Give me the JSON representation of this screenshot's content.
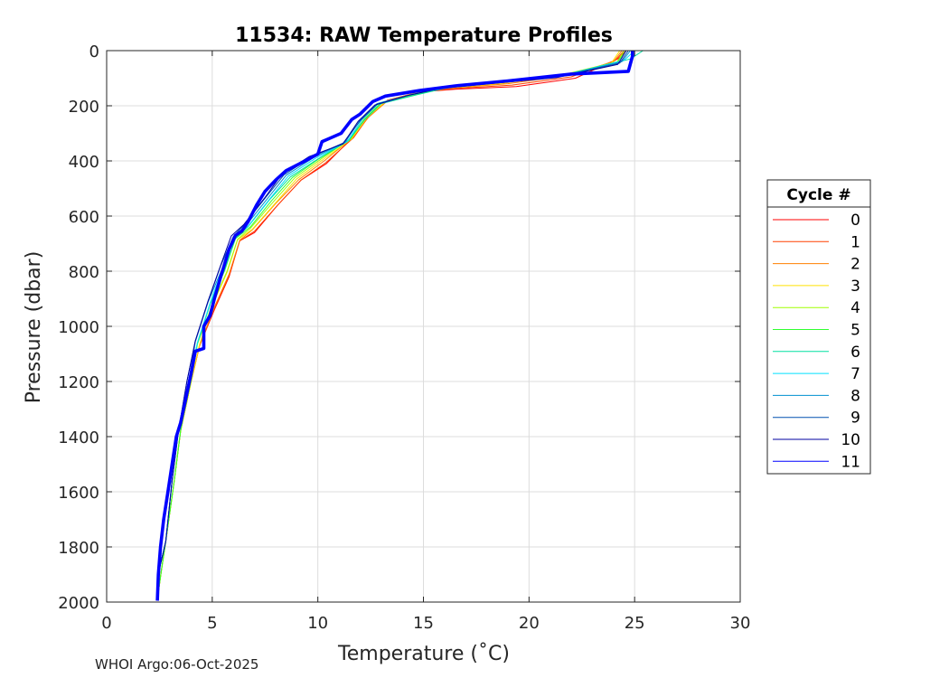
{
  "footer": "WHOI Argo:06-Oct-2025",
  "chart_data": {
    "type": "line",
    "title": "11534: RAW Temperature Profiles",
    "xlabel": "Temperature (˚C)",
    "ylabel": "Pressure (dbar)",
    "xlim": [
      0,
      30
    ],
    "ylim": [
      0,
      2000
    ],
    "y_reversed": true,
    "grid": true,
    "x_ticks": [
      "0",
      "5",
      "10",
      "15",
      "20",
      "25",
      "30"
    ],
    "y_ticks": [
      "0",
      "200",
      "400",
      "600",
      "800",
      "1000",
      "1200",
      "1400",
      "1600",
      "1800",
      "2000"
    ],
    "legend": {
      "title": "Cycle #",
      "placement": "outside-right"
    },
    "series": [
      {
        "name": "0",
        "color": "#ff0000",
        "x": [
          24.6,
          24.2,
          22.2,
          19.4,
          16.5,
          14.8,
          13.3,
          12.4,
          11.7,
          10.4,
          9.2,
          8.1,
          7.0,
          6.3,
          5.8,
          5.1,
          4.4,
          4.0,
          3.5,
          3.2,
          2.8,
          2.6,
          2.4
        ],
        "y": [
          0,
          30,
          100,
          130,
          140,
          150,
          180,
          240,
          310,
          410,
          470,
          560,
          660,
          690,
          820,
          940,
          1070,
          1200,
          1380,
          1560,
          1780,
          1880,
          1990
        ]
      },
      {
        "name": "1",
        "color": "#ff4000",
        "x": [
          24.5,
          24.1,
          22.0,
          19.2,
          16.4,
          14.8,
          13.3,
          12.4,
          11.7,
          10.4,
          9.2,
          8.1,
          7.0,
          6.3,
          5.8,
          5.1,
          4.4,
          4.0,
          3.5,
          3.2,
          2.8,
          2.6,
          2.4
        ],
        "y": [
          0,
          35,
          95,
          125,
          138,
          150,
          180,
          240,
          315,
          405,
          470,
          560,
          655,
          690,
          815,
          935,
          1070,
          1200,
          1380,
          1560,
          1780,
          1880,
          1990
        ]
      },
      {
        "name": "2",
        "color": "#ff8000",
        "x": [
          24.4,
          24.0,
          21.8,
          19.0,
          16.3,
          14.7,
          13.3,
          12.4,
          11.6,
          10.3,
          9.1,
          8.0,
          6.9,
          6.3,
          5.8,
          5.1,
          4.4,
          4.0,
          3.5,
          3.2,
          2.8,
          2.6,
          2.4
        ],
        "y": [
          0,
          40,
          90,
          120,
          136,
          152,
          182,
          242,
          318,
          400,
          468,
          555,
          650,
          688,
          810,
          930,
          1068,
          1200,
          1380,
          1560,
          1780,
          1880,
          1990
        ]
      },
      {
        "name": "3",
        "color": "#ffe000",
        "x": [
          24.3,
          23.9,
          21.6,
          18.8,
          16.2,
          14.6,
          13.2,
          12.3,
          11.6,
          10.2,
          9.0,
          8.0,
          6.9,
          6.2,
          5.7,
          5.0,
          4.4,
          4.0,
          3.5,
          3.2,
          2.8,
          2.6,
          2.4
        ],
        "y": [
          0,
          45,
          88,
          118,
          135,
          155,
          185,
          245,
          320,
          398,
          465,
          552,
          648,
          686,
          805,
          925,
          1066,
          1200,
          1380,
          1560,
          1780,
          1880,
          1990
        ]
      },
      {
        "name": "4",
        "color": "#a0ff00",
        "x": [
          24.5,
          24.1,
          21.5,
          18.7,
          16.1,
          14.5,
          13.0,
          12.2,
          11.5,
          10.1,
          8.9,
          7.9,
          6.8,
          6.2,
          5.7,
          5.0,
          4.3,
          4.0,
          3.5,
          3.2,
          2.8,
          2.6,
          2.4
        ],
        "y": [
          0,
          50,
          90,
          115,
          133,
          158,
          188,
          248,
          322,
          396,
          462,
          548,
          645,
          684,
          800,
          922,
          1064,
          1200,
          1380,
          1560,
          1780,
          1880,
          1990
        ]
      },
      {
        "name": "5",
        "color": "#30ff30",
        "x": [
          24.6,
          24.2,
          21.8,
          18.9,
          16.2,
          14.6,
          13.0,
          12.2,
          11.5,
          10.0,
          8.8,
          7.8,
          6.8,
          6.1,
          5.6,
          4.9,
          4.3,
          3.9,
          3.5,
          3.2,
          2.8,
          2.6,
          2.4
        ],
        "y": [
          0,
          40,
          85,
          110,
          132,
          160,
          190,
          250,
          325,
          395,
          460,
          545,
          640,
          682,
          795,
          920,
          1062,
          1200,
          1380,
          1560,
          1780,
          1880,
          1990
        ]
      },
      {
        "name": "6",
        "color": "#00e0a0",
        "x": [
          25.4,
          24.8,
          22.0,
          19.2,
          16.4,
          14.7,
          13.0,
          12.2,
          11.4,
          10.0,
          8.7,
          7.7,
          6.7,
          6.1,
          5.6,
          4.9,
          4.3,
          3.9,
          3.4,
          3.1,
          2.8,
          2.5,
          2.4
        ],
        "y": [
          0,
          30,
          85,
          105,
          130,
          160,
          192,
          252,
          328,
          393,
          458,
          542,
          638,
          680,
          790,
          918,
          1060,
          1200,
          1380,
          1560,
          1780,
          1880,
          1990
        ]
      },
      {
        "name": "7",
        "color": "#00e0ff",
        "x": [
          25.0,
          24.5,
          21.6,
          18.8,
          16.1,
          14.5,
          12.9,
          12.1,
          11.4,
          9.9,
          8.6,
          7.7,
          6.7,
          6.0,
          5.5,
          4.9,
          4.3,
          3.9,
          3.4,
          3.1,
          2.8,
          2.5,
          2.4
        ],
        "y": [
          0,
          35,
          90,
          108,
          131,
          158,
          190,
          250,
          330,
          390,
          455,
          540,
          636,
          678,
          788,
          915,
          1058,
          1200,
          1380,
          1560,
          1780,
          1880,
          1990
        ]
      },
      {
        "name": "8",
        "color": "#0090d0",
        "x": [
          24.8,
          24.4,
          21.5,
          18.6,
          16.0,
          14.4,
          12.8,
          12.0,
          11.3,
          9.8,
          8.5,
          7.6,
          6.6,
          6.0,
          5.5,
          4.8,
          4.2,
          3.9,
          3.4,
          3.1,
          2.8,
          2.5,
          2.4
        ],
        "y": [
          0,
          40,
          92,
          112,
          133,
          160,
          192,
          252,
          332,
          388,
          452,
          538,
          634,
          676,
          785,
          912,
          1056,
          1200,
          1380,
          1560,
          1780,
          1880,
          1990
        ]
      },
      {
        "name": "9",
        "color": "#0050b0",
        "x": [
          24.7,
          24.3,
          21.4,
          18.5,
          15.9,
          14.3,
          12.8,
          12.0,
          11.2,
          9.7,
          8.4,
          7.5,
          6.5,
          6.0,
          5.4,
          4.8,
          4.2,
          3.8,
          3.4,
          3.1,
          2.8,
          2.5,
          2.4
        ],
        "y": [
          0,
          45,
          95,
          115,
          135,
          162,
          195,
          255,
          335,
          386,
          450,
          535,
          632,
          674,
          780,
          910,
          1054,
          1200,
          1380,
          1560,
          1780,
          1880,
          1990
        ]
      },
      {
        "name": "10",
        "color": "#0000a0",
        "x": [
          24.6,
          24.2,
          21.3,
          18.4,
          15.8,
          14.2,
          12.7,
          11.9,
          11.2,
          9.6,
          8.3,
          7.5,
          6.5,
          5.9,
          5.4,
          4.8,
          4.2,
          3.8,
          3.4,
          3.1,
          2.8,
          2.5,
          2.4
        ],
        "y": [
          0,
          50,
          98,
          118,
          137,
          164,
          197,
          257,
          338,
          384,
          448,
          532,
          630,
          672,
          778,
          908,
          1052,
          1200,
          1380,
          1560,
          1780,
          1880,
          1990
        ]
      },
      {
        "name": "11",
        "color": "#0000ff",
        "thick": true,
        "x": [
          24.9,
          24.9,
          24.7,
          22.0,
          19.0,
          16.5,
          14.8,
          13.2,
          12.6,
          12.0,
          11.6,
          11.1,
          10.5,
          10.2,
          10.0,
          9.4,
          8.5,
          8.0,
          7.5,
          7.1,
          6.7,
          6.4,
          6.1,
          5.8,
          5.4,
          5.1,
          4.9,
          4.6,
          4.6,
          4.2,
          4.0,
          3.7,
          3.5,
          3.3,
          3.1,
          2.9,
          2.7,
          2.55,
          2.45,
          2.4
        ],
        "y": [
          0,
          20,
          75,
          85,
          110,
          128,
          145,
          165,
          185,
          230,
          250,
          300,
          320,
          330,
          375,
          400,
          435,
          470,
          510,
          560,
          620,
          655,
          670,
          720,
          820,
          900,
          960,
          1000,
          1080,
          1090,
          1170,
          1280,
          1350,
          1400,
          1500,
          1600,
          1700,
          1800,
          1900,
          1995
        ]
      }
    ]
  }
}
